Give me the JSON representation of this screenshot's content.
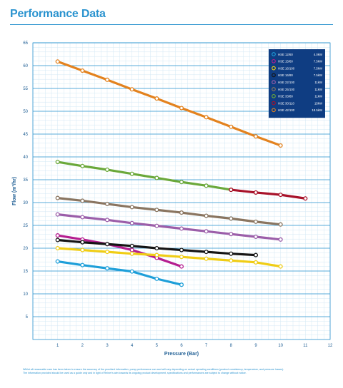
{
  "header": {
    "title": "Performance Data"
  },
  "footer": {
    "line1": "Whilst all reasonable care has been taken to ensure the accuracy of the provided information, pump performance can and will vary depending on actual operating conditions (product consistency, temperature, and pressure losses).",
    "line2": "The information provided should be used as a guide only and in light of Reiner's aim towards its ongoing product development, specifications and performances are subject to change without notice."
  },
  "colors": {
    "accent": "#2a93cf",
    "legend_bg": "#0f3d82"
  },
  "chart_data": {
    "type": "line",
    "title": "",
    "xlabel": "Pressure (Bar)",
    "ylabel": "Flow (m³/hr)",
    "xlim": [
      0,
      12
    ],
    "ylim": [
      0,
      65
    ],
    "x_ticks": [
      1,
      2,
      3,
      4,
      5,
      6,
      7,
      8,
      9,
      10,
      11,
      12
    ],
    "y_ticks": [
      5,
      10,
      15,
      20,
      25,
      30,
      35,
      40,
      45,
      50,
      55,
      60,
      65
    ],
    "grid": true,
    "legend_position": "top-right",
    "series": [
      {
        "name": "HSE 12/60",
        "power": "4.0kW",
        "color": "#1e9fd9",
        "x": [
          1,
          2,
          3,
          4,
          5,
          6
        ],
        "y": [
          17.1,
          16.3,
          15.6,
          14.9,
          13.3,
          12.0
        ]
      },
      {
        "name": "HSE 15/60",
        "power": "7.5kW",
        "color": "#b51e90",
        "x": [
          1,
          2,
          3,
          4,
          5,
          6
        ],
        "y": [
          22.8,
          21.9,
          20.9,
          19.6,
          17.9,
          16.0
        ]
      },
      {
        "name": "HSE 16/100",
        "power": "7.5kW",
        "color": "#f0cd15",
        "x": [
          1,
          2,
          3,
          4,
          5,
          6,
          7,
          8,
          9,
          10
        ],
        "y": [
          20.0,
          19.6,
          19.2,
          18.8,
          18.5,
          18.1,
          17.7,
          17.3,
          16.9,
          16.0
        ]
      },
      {
        "name": "HSE 16/90",
        "power": "7.5kW",
        "color": "#151515",
        "x": [
          1,
          2,
          3,
          4,
          5,
          6,
          7,
          8,
          9
        ],
        "y": [
          21.8,
          21.3,
          20.9,
          20.5,
          20.0,
          19.6,
          19.2,
          18.8,
          18.5
        ]
      },
      {
        "name": "HSE 22/100",
        "power": "11kW",
        "color": "#9b5ea9",
        "x": [
          1,
          2,
          3,
          4,
          5,
          6,
          7,
          8,
          9,
          10
        ],
        "y": [
          27.4,
          26.8,
          26.2,
          25.5,
          24.9,
          24.3,
          23.7,
          23.1,
          22.5,
          21.9
        ]
      },
      {
        "name": "HSE 25/100",
        "power": "11kW",
        "color": "#8a7560",
        "x": [
          1,
          2,
          3,
          4,
          5,
          6,
          7,
          8,
          9,
          10
        ],
        "y": [
          31.0,
          30.4,
          29.7,
          29.0,
          28.4,
          27.8,
          27.1,
          26.5,
          25.8,
          25.2
        ]
      },
      {
        "name": "HSE 33/80",
        "power": "11kW",
        "color": "#6aa83a",
        "x": [
          1,
          2,
          3,
          4,
          5,
          6,
          7,
          8
        ],
        "y": [
          38.9,
          38.0,
          37.2,
          36.3,
          35.4,
          34.5,
          33.7,
          32.8
        ]
      },
      {
        "name": "HSE 30/110",
        "power": "15kW",
        "color": "#a8122a",
        "x": [
          8,
          9,
          10,
          11
        ],
        "y": [
          32.8,
          32.2,
          31.7,
          30.9
        ]
      },
      {
        "name": "HSE 42/100",
        "power": "18.5kW",
        "color": "#e3821e",
        "x": [
          1,
          2,
          3,
          4,
          5,
          6,
          7,
          8,
          9,
          10
        ],
        "y": [
          60.9,
          58.9,
          56.9,
          54.8,
          52.8,
          50.7,
          48.7,
          46.6,
          44.5,
          42.5
        ]
      }
    ]
  }
}
